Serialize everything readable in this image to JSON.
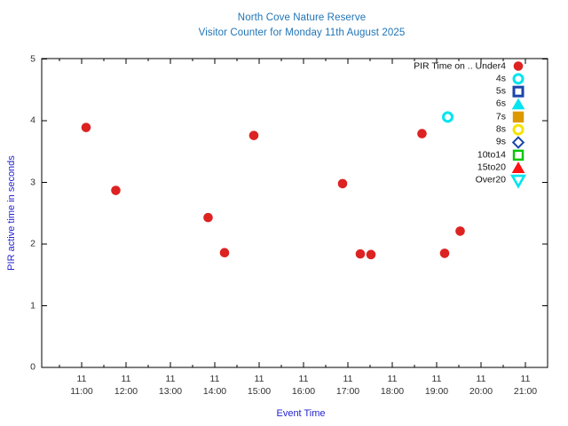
{
  "chart_data": {
    "type": "scatter",
    "title_line1": "North Cove Nature Reserve",
    "title_line2": "Visitor Counter for Monday 11th August 2025",
    "xlabel": "Event Time",
    "ylabel": "PIR active time in seconds",
    "colors": {
      "title": "#1f74b5",
      "axis_label": "#2323cc",
      "tick_text": "#303030",
      "axis_line": "#000000"
    },
    "x_axis": {
      "day": "11",
      "tick_times": [
        "11:00",
        "12:00",
        "13:00",
        "14:00",
        "15:00",
        "16:00",
        "17:00",
        "18:00",
        "19:00",
        "20:00",
        "21:00"
      ],
      "tick_hours": [
        11,
        12,
        13,
        14,
        15,
        16,
        17,
        18,
        19,
        20,
        21
      ],
      "minor_step_hours": 0.5,
      "range_hours": [
        10.1,
        21.5
      ]
    },
    "y_axis": {
      "ticks": [
        "0",
        "1",
        "2",
        "3",
        "4",
        "5"
      ],
      "range": [
        0,
        5
      ]
    },
    "legend": {
      "position": "top-right",
      "entries": [
        {
          "label": "PIR Time on .. Under4",
          "marker": "circle-filled",
          "color": "#dd2222"
        },
        {
          "label": "4s",
          "marker": "circle-open",
          "color": "#00e5ee"
        },
        {
          "label": "5s",
          "marker": "square-open",
          "color": "#1a46aa"
        },
        {
          "label": "6s",
          "marker": "triangle-filled",
          "color": "#00e5ee"
        },
        {
          "label": "7s",
          "marker": "square-filled",
          "color": "#dd9900"
        },
        {
          "label": "8s",
          "marker": "circle-open",
          "color": "#f5e400"
        },
        {
          "label": "9s",
          "marker": "diamond-open",
          "color": "#1a46aa"
        },
        {
          "label": "10to14",
          "marker": "square-open-thin",
          "color": "#00c800"
        },
        {
          "label": "15to20",
          "marker": "triangle-filled",
          "color": "#ff1111"
        },
        {
          "label": "Over20",
          "marker": "triangle-down-open",
          "color": "#00e5ee"
        }
      ]
    },
    "series": [
      {
        "name": "Under4",
        "marker": "circle-filled",
        "color": "#dd2222",
        "points": [
          {
            "time": "11:06",
            "hour": 11.1,
            "seconds": 3.89
          },
          {
            "time": "11:46",
            "hour": 11.77,
            "seconds": 2.87
          },
          {
            "time": "13:51",
            "hour": 13.85,
            "seconds": 2.43
          },
          {
            "time": "14:13",
            "hour": 14.22,
            "seconds": 1.86
          },
          {
            "time": "14:53",
            "hour": 14.88,
            "seconds": 3.76
          },
          {
            "time": "16:53",
            "hour": 16.88,
            "seconds": 2.98
          },
          {
            "time": "17:17",
            "hour": 17.28,
            "seconds": 1.84
          },
          {
            "time": "17:31",
            "hour": 17.52,
            "seconds": 1.83
          },
          {
            "time": "18:40",
            "hour": 18.67,
            "seconds": 3.79
          },
          {
            "time": "19:11",
            "hour": 19.18,
            "seconds": 1.85
          },
          {
            "time": "19:32",
            "hour": 19.53,
            "seconds": 2.21
          }
        ]
      },
      {
        "name": "4s",
        "marker": "circle-open",
        "color": "#00e5ee",
        "points": [
          {
            "time": "19:15",
            "hour": 19.25,
            "seconds": 4.06
          }
        ]
      }
    ]
  }
}
